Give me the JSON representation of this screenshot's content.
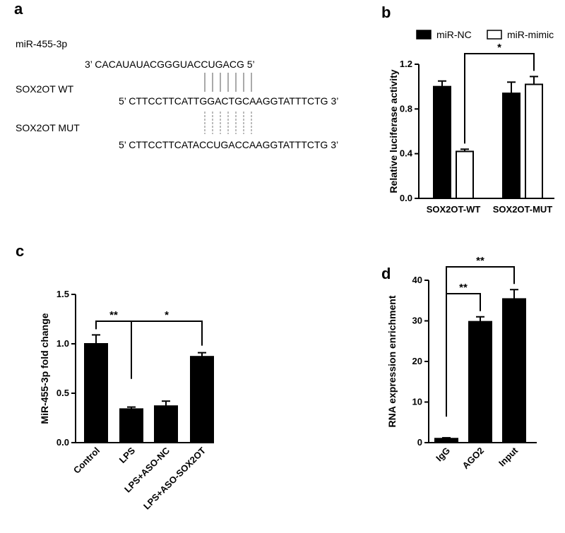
{
  "panels": {
    "a": {
      "label": "a",
      "mirna_label": "miR-455-3p",
      "mirna_seq": "3’ CACAUAUACGGGUACCUGACG 5’",
      "wt_label": "SOX2OT WT",
      "wt_seq": "5’ CTTCCTTCATTGGACTGCAAGGTATTTCTG 3’",
      "mut_label": "SOX2OT MUT",
      "mut_seq": "5’ CTTCCTTCATACCUGACCAAGGTATTTCTG 3’"
    },
    "b": {
      "label": "b"
    },
    "c": {
      "label": "c"
    },
    "d": {
      "label": "d"
    }
  },
  "chart_data": [
    {
      "panel": "b",
      "type": "bar",
      "categories": [
        "SOX2OT-WT",
        "SOX2OT-MUT"
      ],
      "series": [
        {
          "name": "miR-NC",
          "values": [
            1.0,
            0.94
          ],
          "errors": [
            0.05,
            0.1
          ],
          "color": "#000000"
        },
        {
          "name": "miR-mimic",
          "values": [
            0.42,
            1.02
          ],
          "errors": [
            0.02,
            0.07
          ],
          "color": "#ffffff"
        }
      ],
      "ylabel": "Relative luciferase activity",
      "ylim": [
        0,
        1.2
      ],
      "yticks": [
        "0.0",
        "0.4",
        "0.8",
        "1.2"
      ],
      "legend": "top",
      "significance": [
        {
          "text": "*"
        }
      ]
    },
    {
      "panel": "c",
      "type": "bar",
      "categories": [
        "Control",
        "LPS",
        "LPS+ASO-NC",
        "LPS+ASO-SOX2OT"
      ],
      "values": [
        1.0,
        0.34,
        0.37,
        0.87
      ],
      "errors": [
        0.09,
        0.02,
        0.05,
        0.04
      ],
      "ylabel": "MiR-455-3p fold change",
      "ylim": [
        0,
        1.5
      ],
      "yticks": [
        "0.0",
        "0.5",
        "1.0",
        "1.5"
      ],
      "significance": [
        {
          "text": "**"
        },
        {
          "text": "*"
        }
      ]
    },
    {
      "panel": "d",
      "type": "bar",
      "categories": [
        "IgG",
        "AGO2",
        "Input"
      ],
      "values": [
        1.0,
        29.8,
        35.4
      ],
      "errors": [
        0.2,
        1.2,
        2.3
      ],
      "ylabel": "RNA expression enrichment",
      "ylim": [
        0,
        40
      ],
      "yticks": [
        "0",
        "10",
        "20",
        "30",
        "40"
      ],
      "significance": [
        {
          "text": "**"
        },
        {
          "text": "**"
        }
      ]
    }
  ]
}
